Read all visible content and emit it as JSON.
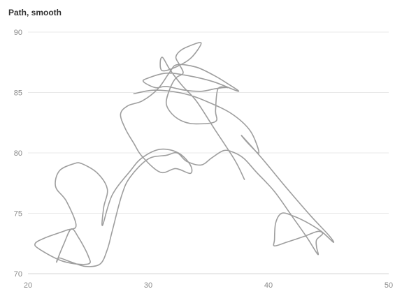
{
  "chart_data": {
    "type": "line",
    "title": "Path, smooth",
    "xlabel": "",
    "ylabel": "",
    "xlim": [
      20,
      50
    ],
    "ylim": [
      70,
      90
    ],
    "x_ticks": [
      20,
      30,
      40,
      50
    ],
    "y_ticks": [
      70,
      75,
      80,
      85,
      90
    ],
    "grid": "horizontal",
    "legend": "none",
    "series": [
      {
        "color": "#9e9e9e",
        "points": [
          [
            28.8,
            84.9
          ],
          [
            30.6,
            85.2
          ],
          [
            33.0,
            84.9
          ],
          [
            35.0,
            84.2
          ],
          [
            37.0,
            83.2
          ],
          [
            38.5,
            81.8
          ],
          [
            39.2,
            80.0
          ],
          [
            38.3,
            80.8
          ],
          [
            37.8,
            81.4
          ],
          [
            39.5,
            79.5
          ],
          [
            41.5,
            77.1
          ],
          [
            43.5,
            74.8
          ],
          [
            45.0,
            73.2
          ],
          [
            45.4,
            72.6
          ],
          [
            44.4,
            73.5
          ],
          [
            43.1,
            74.3
          ],
          [
            42.0,
            74.8
          ],
          [
            41.1,
            75.0
          ],
          [
            40.6,
            74.2
          ],
          [
            40.5,
            72.8
          ],
          [
            40.5,
            72.3
          ],
          [
            41.5,
            72.6
          ],
          [
            43.0,
            73.1
          ],
          [
            44.1,
            73.5
          ],
          [
            44.5,
            73.3
          ],
          [
            44.0,
            72.8
          ],
          [
            44.0,
            72.2
          ],
          [
            44.1,
            71.6
          ],
          [
            43.2,
            73.0
          ],
          [
            42.0,
            74.7
          ],
          [
            40.5,
            76.8
          ],
          [
            39.0,
            78.4
          ],
          [
            38.0,
            79.5
          ],
          [
            37.2,
            80.0
          ],
          [
            36.3,
            80.2
          ],
          [
            35.3,
            79.6
          ],
          [
            34.4,
            79.0
          ],
          [
            33.2,
            79.3
          ],
          [
            32.4,
            80.0
          ],
          [
            31.5,
            79.8
          ],
          [
            30.0,
            79.5
          ],
          [
            28.5,
            78.0
          ],
          [
            27.8,
            76.5
          ],
          [
            27.0,
            73.5
          ],
          [
            26.6,
            72.0
          ],
          [
            26.0,
            70.8
          ],
          [
            24.8,
            70.6
          ],
          [
            23.5,
            71.0
          ],
          [
            22.6,
            71.3
          ],
          [
            22.4,
            71.0
          ],
          [
            23.0,
            72.5
          ],
          [
            23.6,
            73.7
          ],
          [
            24.2,
            73.0
          ],
          [
            25.0,
            71.5
          ],
          [
            25.0,
            70.8
          ],
          [
            23.0,
            71.0
          ],
          [
            21.0,
            72.0
          ],
          [
            20.6,
            72.5
          ],
          [
            21.5,
            73.0
          ],
          [
            23.2,
            73.6
          ],
          [
            24.0,
            74.0
          ],
          [
            23.2,
            76.0
          ],
          [
            22.3,
            77.2
          ],
          [
            22.6,
            78.5
          ],
          [
            23.8,
            79.1
          ],
          [
            24.5,
            79.1
          ],
          [
            25.8,
            78.3
          ],
          [
            26.6,
            77.0
          ],
          [
            26.3,
            75.5
          ],
          [
            26.2,
            74.0
          ],
          [
            27.0,
            76.5
          ],
          [
            28.5,
            78.5
          ],
          [
            29.5,
            79.6
          ],
          [
            31.0,
            80.3
          ],
          [
            32.5,
            80.0
          ],
          [
            33.5,
            79.0
          ],
          [
            33.5,
            78.3
          ],
          [
            32.3,
            78.7
          ],
          [
            31.0,
            78.4
          ],
          [
            29.5,
            79.7
          ],
          [
            28.8,
            80.8
          ],
          [
            28.1,
            82.0
          ],
          [
            27.7,
            83.2
          ],
          [
            28.3,
            83.9
          ],
          [
            29.5,
            84.3
          ],
          [
            30.8,
            85.3
          ],
          [
            31.8,
            86.7
          ],
          [
            32.4,
            87.3
          ],
          [
            34.0,
            87.1
          ],
          [
            35.5,
            86.4
          ],
          [
            36.5,
            85.8
          ],
          [
            37.5,
            85.1
          ],
          [
            35.4,
            85.9
          ],
          [
            33.3,
            86.4
          ],
          [
            31.5,
            86.6
          ],
          [
            30.0,
            86.2
          ],
          [
            29.6,
            85.9
          ],
          [
            30.6,
            85.4
          ],
          [
            31.5,
            85.5
          ],
          [
            33.0,
            85.2
          ],
          [
            34.4,
            85.1
          ],
          [
            35.5,
            85.3
          ],
          [
            36.2,
            85.4
          ],
          [
            36.6,
            85.4
          ],
          [
            35.8,
            85.3
          ],
          [
            35.6,
            83.5
          ],
          [
            35.6,
            82.6
          ],
          [
            34.0,
            82.4
          ],
          [
            32.9,
            82.6
          ],
          [
            32.0,
            83.2
          ],
          [
            31.5,
            84.1
          ],
          [
            31.8,
            85.3
          ],
          [
            32.3,
            86.2
          ],
          [
            32.9,
            86.6
          ],
          [
            32.6,
            87.3
          ],
          [
            32.3,
            87.9
          ],
          [
            32.6,
            88.4
          ],
          [
            33.3,
            88.8
          ],
          [
            34.4,
            89.1
          ],
          [
            33.6,
            87.9
          ],
          [
            32.5,
            87.2
          ],
          [
            31.2,
            86.8
          ],
          [
            31.0,
            87.5
          ],
          [
            31.2,
            87.9
          ],
          [
            31.8,
            86.9
          ],
          [
            32.8,
            85.6
          ],
          [
            34.0,
            84.3
          ],
          [
            35.5,
            82.0
          ],
          [
            37.2,
            79.4
          ],
          [
            38.0,
            77.8
          ]
        ]
      }
    ]
  }
}
